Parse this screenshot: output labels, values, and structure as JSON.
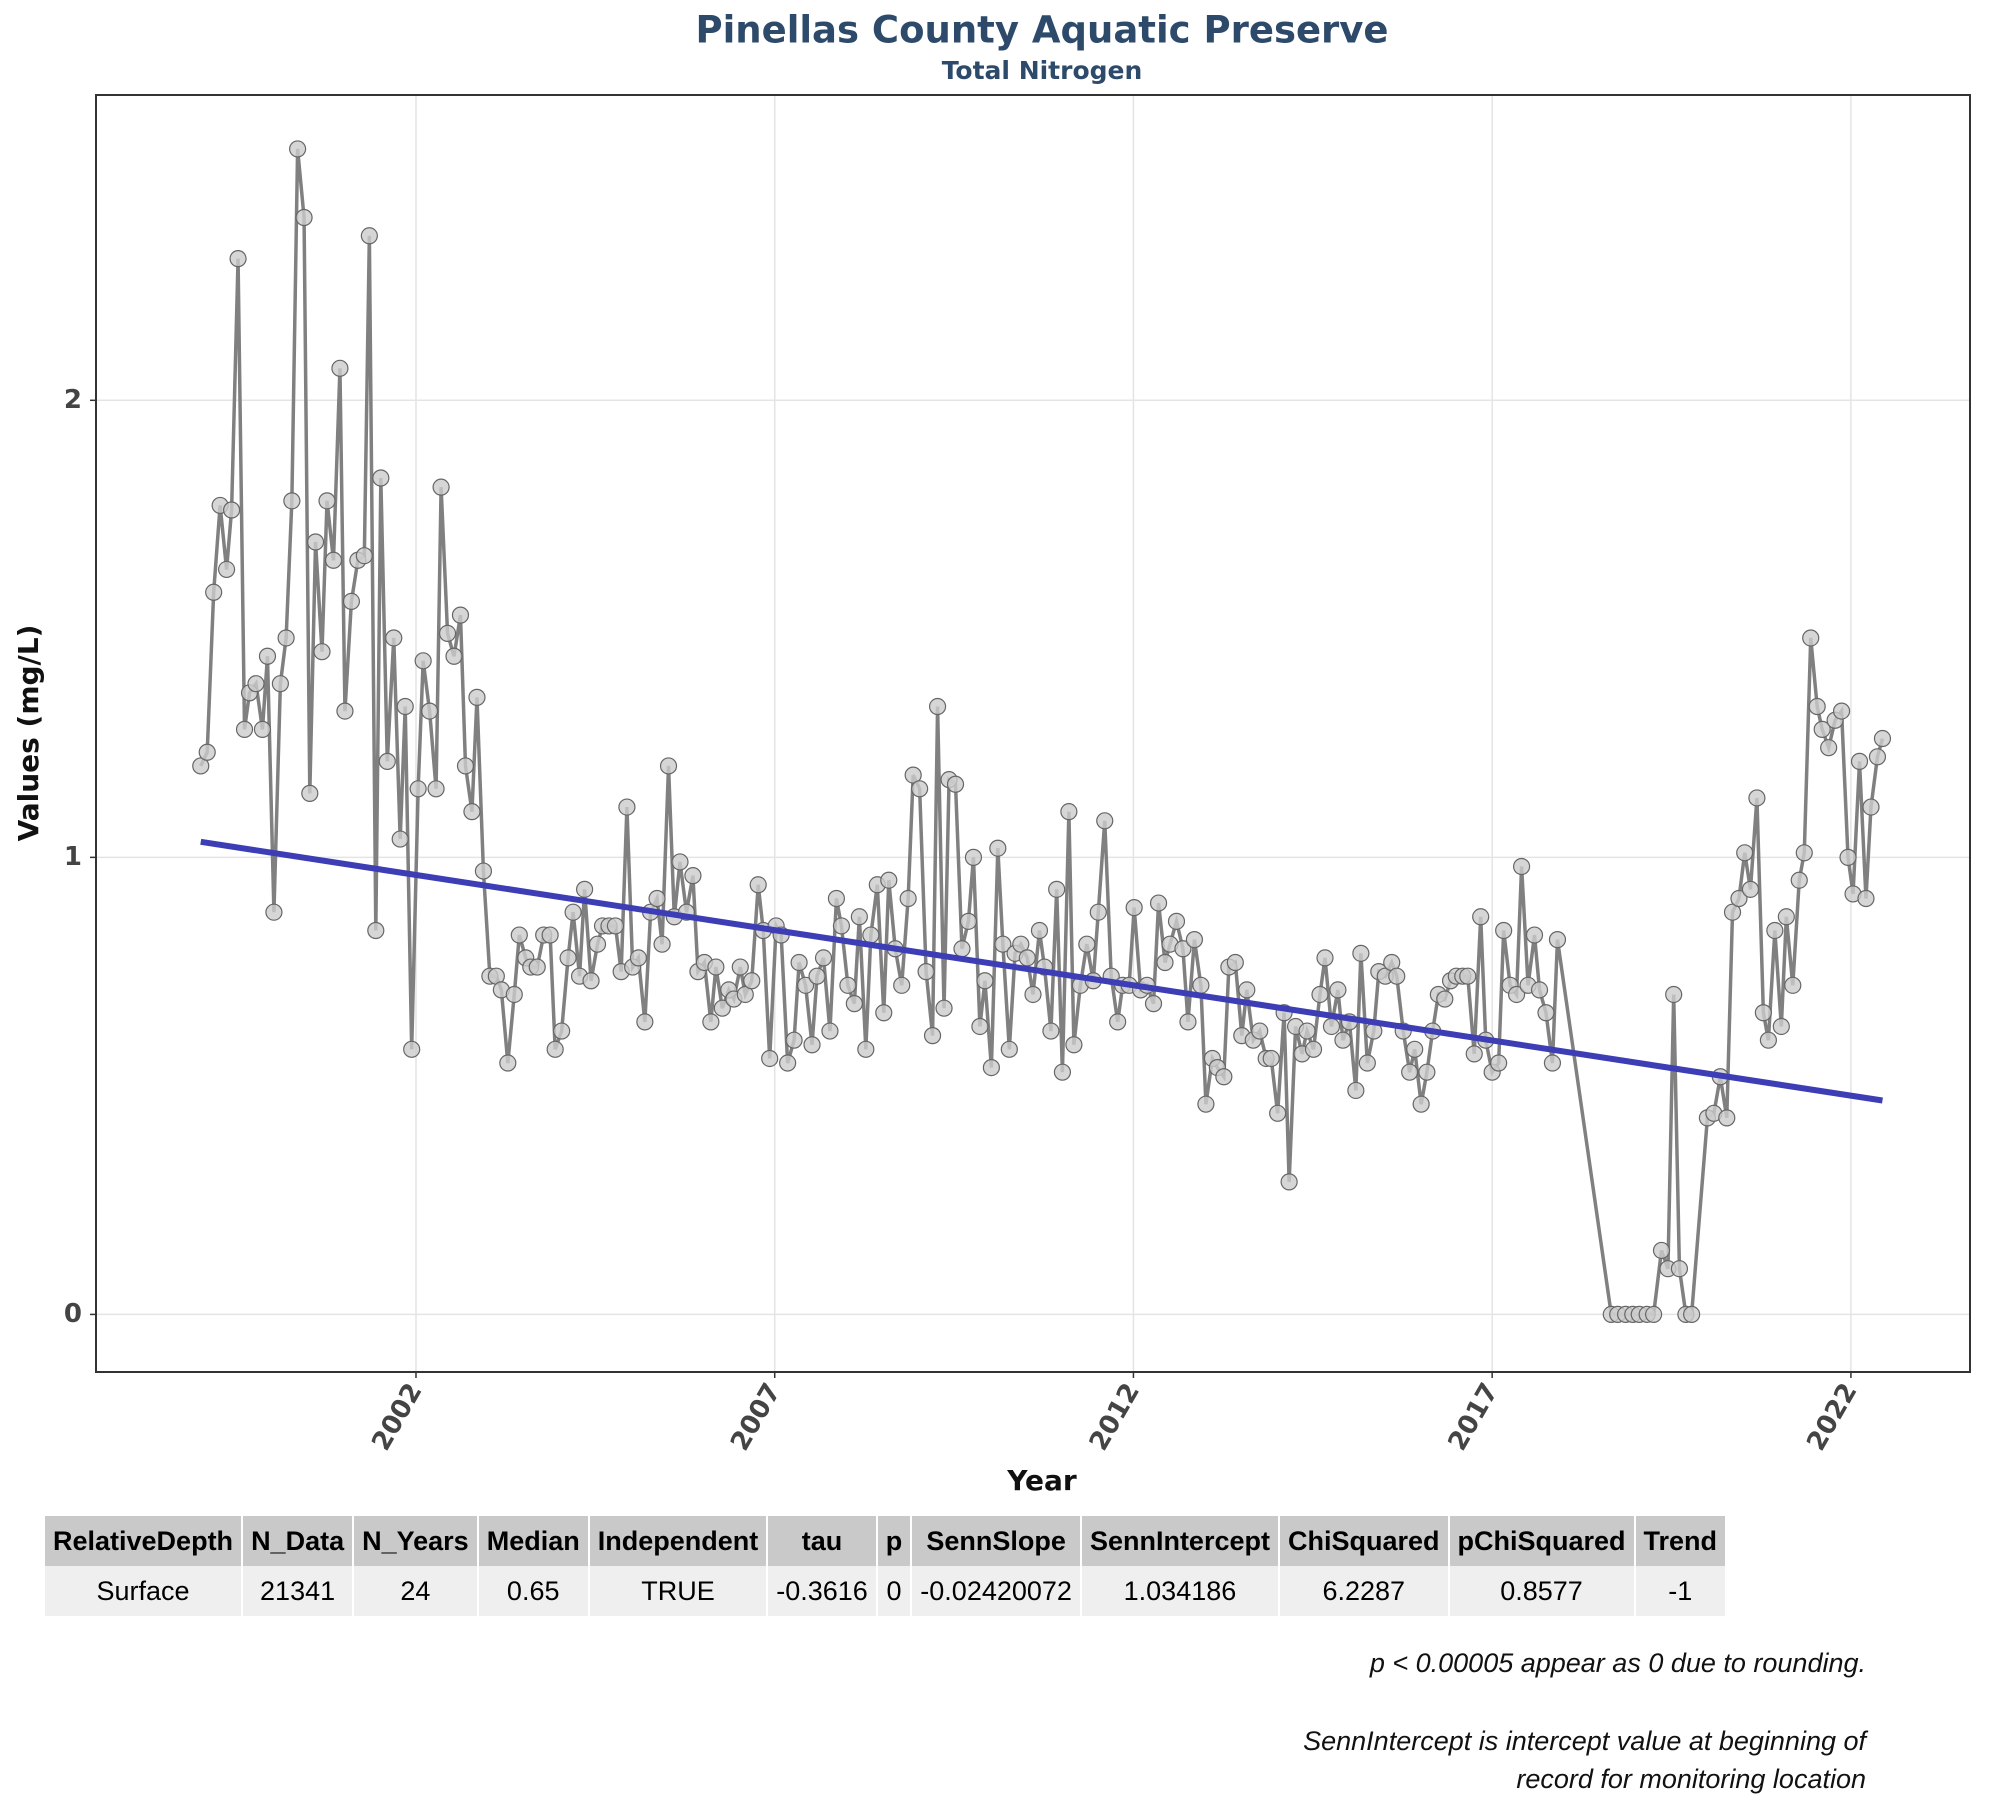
{
  "chart_data": {
    "type": "line",
    "title": "Pinellas County Aquatic Preserve",
    "subtitle": "Total Nitrogen",
    "x_label": "Year",
    "y_label": "Values (mg/L)",
    "xlim": [
      1997.54,
      2023.66
    ],
    "ylim": [
      -0.126,
      2.668
    ],
    "xticks": [
      2002,
      2007,
      2012,
      2017,
      2022
    ],
    "yticks": [
      0,
      1,
      2
    ],
    "grid": true,
    "color": "#808080",
    "point_color": "#cccccc",
    "x": [
      1999.0,
      1999.09,
      1999.18,
      1999.27,
      1999.36,
      1999.43,
      1999.52,
      1999.61,
      1999.68,
      1999.77,
      1999.86,
      1999.93,
      2000.02,
      2000.11,
      2000.19,
      2000.27,
      2000.35,
      2000.44,
      2000.52,
      2000.6,
      2000.69,
      2000.76,
      2000.85,
      2000.94,
      2001.01,
      2001.1,
      2001.19,
      2001.28,
      2001.35,
      2001.44,
      2001.51,
      2001.6,
      2001.69,
      2001.78,
      2001.85,
      2001.94,
      2002.03,
      2002.1,
      2002.19,
      2002.28,
      2002.35,
      2002.44,
      2002.53,
      2002.62,
      2002.69,
      2002.78,
      2002.85,
      2002.94,
      2003.03,
      2003.12,
      2003.19,
      2003.28,
      2003.37,
      2003.44,
      2003.53,
      2003.6,
      2003.69,
      2003.78,
      2003.87,
      2003.94,
      2004.03,
      2004.12,
      2004.19,
      2004.28,
      2004.35,
      2004.44,
      2004.53,
      2004.6,
      2004.69,
      2004.78,
      2004.86,
      2004.94,
      2005.02,
      2005.1,
      2005.19,
      2005.27,
      2005.36,
      2005.43,
      2005.52,
      2005.6,
      2005.68,
      2005.77,
      2005.86,
      2005.93,
      2006.02,
      2006.11,
      2006.18,
      2006.27,
      2006.36,
      2006.43,
      2006.52,
      2006.59,
      2006.68,
      2006.77,
      2006.84,
      2006.93,
      2007.02,
      2007.09,
      2007.18,
      2007.27,
      2007.34,
      2007.43,
      2007.52,
      2007.59,
      2007.68,
      2007.77,
      2007.86,
      2007.93,
      2008.02,
      2008.11,
      2008.18,
      2008.27,
      2008.34,
      2008.43,
      2008.52,
      2008.59,
      2008.68,
      2008.77,
      2008.86,
      2008.93,
      2009.02,
      2009.11,
      2009.2,
      2009.27,
      2009.36,
      2009.43,
      2009.52,
      2009.61,
      2009.7,
      2009.77,
      2009.86,
      2009.93,
      2010.02,
      2010.11,
      2010.18,
      2010.27,
      2010.35,
      2010.43,
      2010.52,
      2010.6,
      2010.69,
      2010.76,
      2010.85,
      2010.93,
      2011.01,
      2011.1,
      2011.17,
      2011.26,
      2011.35,
      2011.44,
      2011.51,
      2011.6,
      2011.69,
      2011.78,
      2011.85,
      2011.94,
      2012.01,
      2012.1,
      2012.19,
      2012.28,
      2012.35,
      2012.44,
      2012.51,
      2012.6,
      2012.69,
      2012.76,
      2012.85,
      2012.94,
      2013.01,
      2013.1,
      2013.17,
      2013.26,
      2013.33,
      2013.42,
      2013.51,
      2013.58,
      2013.67,
      2013.76,
      2013.85,
      2013.92,
      2014.01,
      2014.1,
      2014.17,
      2014.26,
      2014.35,
      2014.42,
      2014.51,
      2014.6,
      2014.67,
      2014.76,
      2014.85,
      2014.92,
      2015.01,
      2015.1,
      2015.17,
      2015.26,
      2015.35,
      2015.42,
      2015.51,
      2015.6,
      2015.67,
      2015.76,
      2015.85,
      2015.92,
      2016.01,
      2016.09,
      2016.17,
      2016.25,
      2016.34,
      2016.42,
      2016.5,
      2016.59,
      2016.66,
      2016.75,
      2016.84,
      2016.91,
      2017.0,
      2017.09,
      2017.16,
      2017.25,
      2017.34,
      2017.41,
      2017.5,
      2017.59,
      2017.66,
      2017.75,
      2017.84,
      2017.91,
      2018.66,
      2018.75,
      2018.86,
      2018.96,
      2019.05,
      2019.16,
      2019.25,
      2019.36,
      2019.45,
      2019.53,
      2019.61,
      2019.7,
      2019.78,
      2020.0,
      2020.09,
      2020.18,
      2020.27,
      2020.35,
      2020.44,
      2020.52,
      2020.6,
      2020.69,
      2020.78,
      2020.85,
      2020.94,
      2021.03,
      2021.1,
      2021.19,
      2021.28,
      2021.35,
      2021.44,
      2021.53,
      2021.6,
      2021.69,
      2021.78,
      2021.87,
      2021.96,
      2022.03,
      2022.12,
      2022.21,
      2022.28,
      2022.37,
      2022.44
    ],
    "values": [
      1.2,
      1.23,
      1.58,
      1.77,
      1.63,
      1.76,
      2.31,
      1.28,
      1.36,
      1.38,
      1.28,
      1.44,
      0.88,
      1.38,
      1.48,
      1.78,
      2.55,
      2.4,
      1.14,
      1.69,
      1.45,
      1.78,
      1.65,
      2.07,
      1.32,
      1.56,
      1.65,
      1.66,
      2.36,
      0.84,
      1.83,
      1.21,
      1.48,
      1.04,
      1.33,
      0.58,
      1.15,
      1.43,
      1.32,
      1.15,
      1.81,
      1.49,
      1.44,
      1.53,
      1.2,
      1.1,
      1.35,
      0.97,
      0.74,
      0.74,
      0.71,
      0.55,
      0.7,
      0.83,
      0.78,
      0.76,
      0.76,
      0.83,
      0.83,
      0.58,
      0.62,
      0.78,
      0.88,
      0.74,
      0.93,
      0.73,
      0.81,
      0.85,
      0.85,
      0.85,
      0.75,
      1.11,
      0.76,
      0.78,
      0.64,
      0.88,
      0.91,
      0.81,
      1.2,
      0.87,
      0.99,
      0.88,
      0.96,
      0.75,
      0.77,
      0.64,
      0.76,
      0.67,
      0.71,
      0.69,
      0.76,
      0.7,
      0.73,
      0.94,
      0.84,
      0.56,
      0.85,
      0.83,
      0.55,
      0.6,
      0.77,
      0.72,
      0.59,
      0.74,
      0.78,
      0.62,
      0.91,
      0.85,
      0.72,
      0.68,
      0.87,
      0.58,
      0.83,
      0.94,
      0.66,
      0.95,
      0.8,
      0.72,
      0.91,
      1.18,
      1.15,
      0.75,
      0.61,
      1.33,
      0.67,
      1.17,
      1.16,
      0.8,
      0.86,
      1.0,
      0.63,
      0.73,
      0.54,
      1.02,
      0.81,
      0.58,
      0.79,
      0.81,
      0.78,
      0.7,
      0.84,
      0.76,
      0.62,
      0.93,
      0.53,
      1.1,
      0.59,
      0.72,
      0.81,
      0.73,
      0.88,
      1.08,
      0.74,
      0.64,
      0.72,
      0.72,
      0.89,
      0.71,
      0.72,
      0.68,
      0.9,
      0.77,
      0.81,
      0.86,
      0.8,
      0.64,
      0.82,
      0.72,
      0.46,
      0.56,
      0.54,
      0.52,
      0.76,
      0.77,
      0.61,
      0.71,
      0.6,
      0.62,
      0.56,
      0.56,
      0.44,
      0.66,
      0.29,
      0.63,
      0.57,
      0.62,
      0.58,
      0.7,
      0.78,
      0.63,
      0.71,
      0.6,
      0.64,
      0.49,
      0.79,
      0.55,
      0.62,
      0.75,
      0.74,
      0.77,
      0.74,
      0.62,
      0.53,
      0.58,
      0.46,
      0.53,
      0.62,
      0.7,
      0.69,
      0.73,
      0.74,
      0.74,
      0.74,
      0.57,
      0.87,
      0.6,
      0.53,
      0.55,
      0.84,
      0.72,
      0.7,
      0.98,
      0.72,
      0.83,
      0.71,
      0.66,
      0.55,
      0.82,
      0.0,
      0.0,
      0.0,
      0.0,
      0.0,
      0.0,
      0.0,
      0.14,
      0.1,
      0.7,
      0.1,
      0.0,
      0.0,
      0.43,
      0.44,
      0.52,
      0.43,
      0.88,
      0.91,
      1.01,
      0.93,
      1.13,
      0.66,
      0.6,
      0.84,
      0.63,
      0.87,
      0.72,
      0.95,
      1.01,
      1.48,
      1.33,
      1.28,
      1.24,
      1.3,
      1.32,
      1.0,
      0.92,
      1.21,
      0.91,
      1.11,
      1.22,
      1.26
    ],
    "trend": {
      "x": [
        1999.0,
        2022.44
      ],
      "values": [
        1.034,
        0.468
      ],
      "color": "#3d3db5"
    }
  },
  "table": {
    "header": [
      "RelativeDepth",
      "N_Data",
      "N_Years",
      "Median",
      "Independent",
      "tau",
      "p",
      "SennSlope",
      "SennIntercept",
      "ChiSquared",
      "pChiSquared",
      "Trend"
    ],
    "rows": [
      [
        "Surface",
        "21341",
        "24",
        "0.65",
        "TRUE",
        "-0.3616",
        "0",
        "-0.02420072",
        "1.034186",
        "6.2287",
        "0.8577",
        "-1"
      ]
    ]
  },
  "notes": [
    "p < 0.00005 appear as 0 due to rounding.",
    "SennIntercept is intercept value at beginning of",
    "record for monitoring location"
  ]
}
